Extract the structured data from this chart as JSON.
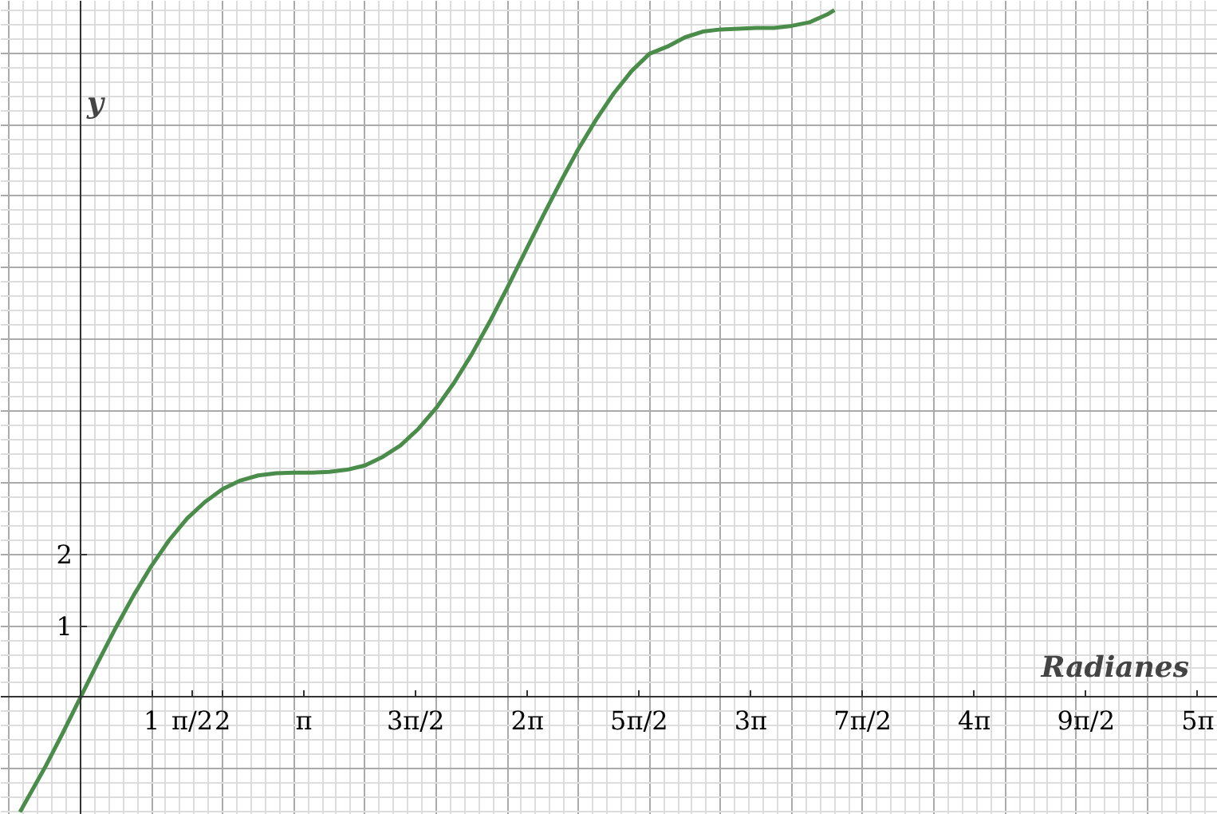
{
  "chart_data": {
    "type": "line",
    "xlabel": "Radianes",
    "ylabel": "y",
    "x": [
      -0.85,
      -0.5,
      -0.25,
      0,
      0.25,
      0.5,
      0.75,
      1,
      1.25,
      1.5,
      1.75,
      2,
      2.25,
      2.5,
      2.75,
      3,
      3.25,
      3.5,
      3.75,
      4,
      4.25,
      4.5,
      4.75,
      5,
      5.25,
      5.5,
      5.75,
      6,
      6.25,
      6.5,
      6.75,
      7,
      7.25,
      7.5,
      7.75,
      8,
      8.25,
      8.5,
      8.75,
      9,
      9.25,
      9.5,
      9.75,
      10,
      10.25,
      10.5,
      10.6
    ],
    "series": [
      {
        "color": "#4a8c4a",
        "values": [
          -1.6,
          -0.98,
          -0.5,
          0,
          0.5,
          0.98,
          1.43,
          1.84,
          2.2,
          2.5,
          2.73,
          2.91,
          3.03,
          3.1,
          3.13,
          3.14,
          3.14,
          3.15,
          3.18,
          3.24,
          3.36,
          3.52,
          3.75,
          4.04,
          4.39,
          4.79,
          5.24,
          5.72,
          6.22,
          6.72,
          7.2,
          7.66,
          8.07,
          8.44,
          8.75,
          8.99,
          9.09,
          9.22,
          9.3,
          9.33,
          9.34,
          9.35,
          9.35,
          9.38,
          9.43,
          9.54,
          9.6
        ]
      }
    ],
    "xlim": [
      -1.12,
      15.99
    ],
    "ylim": [
      -1.64,
      9.73
    ],
    "xticks": [
      1,
      {
        "value": 1.5708,
        "label": "π/2"
      },
      2,
      {
        "value": 3.1416,
        "label": "π"
      },
      {
        "value": 4.7124,
        "label": "3π/2"
      },
      {
        "value": 6.2832,
        "label": "2π"
      },
      {
        "value": 7.854,
        "label": "5π/2"
      },
      {
        "value": 9.4248,
        "label": "3π"
      },
      {
        "value": 10.9956,
        "label": "7π/2"
      },
      {
        "value": 12.5664,
        "label": "4π"
      },
      {
        "value": 14.1372,
        "label": "9π/2"
      },
      {
        "value": 15.708,
        "label": "5π"
      }
    ],
    "yticks": [
      1,
      2
    ],
    "grid": true,
    "marker": "none",
    "line_style": "solid"
  }
}
